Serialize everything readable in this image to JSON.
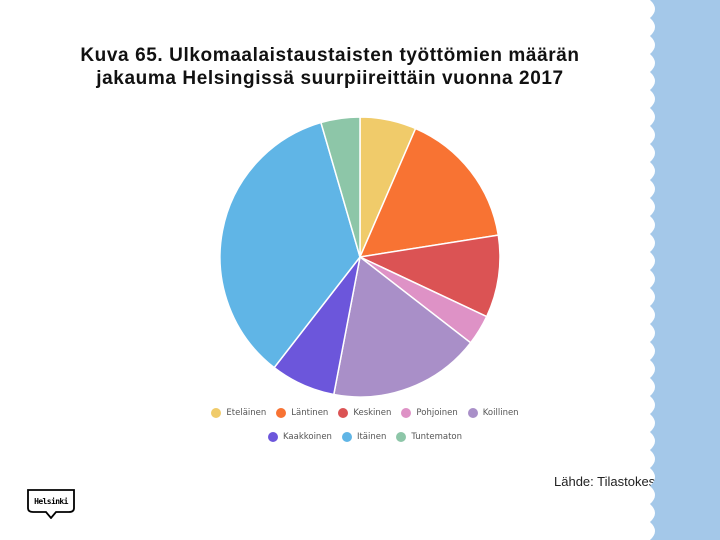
{
  "slide": {
    "title_line1": "Kuva 65. Ulkomaalaistaustaisten työttömien määrän",
    "title_line2": "jakauma Helsingissä suurpiireittäin vuonna 2017",
    "source": "Lähde: Tilastokeskus",
    "logo_text": "Helsinki"
  },
  "colors": {
    "accent_stripe": "#a4c8e9"
  },
  "chart_data": {
    "type": "pie",
    "title": "",
    "legend_position": "bottom",
    "categories": [
      "Eteläinen",
      "Läntinen",
      "Keskinen",
      "Pohjoinen",
      "Koillinen",
      "Kaakkoinen",
      "Itäinen",
      "Tuntematon"
    ],
    "values": [
      6.5,
      16.0,
      9.5,
      3.5,
      17.5,
      7.5,
      35.0,
      4.5
    ],
    "colors": [
      "#f0cb6a",
      "#f87333",
      "#db5354",
      "#de92c6",
      "#a98fc8",
      "#6c56db",
      "#60b5e6",
      "#8dc6a8"
    ]
  }
}
